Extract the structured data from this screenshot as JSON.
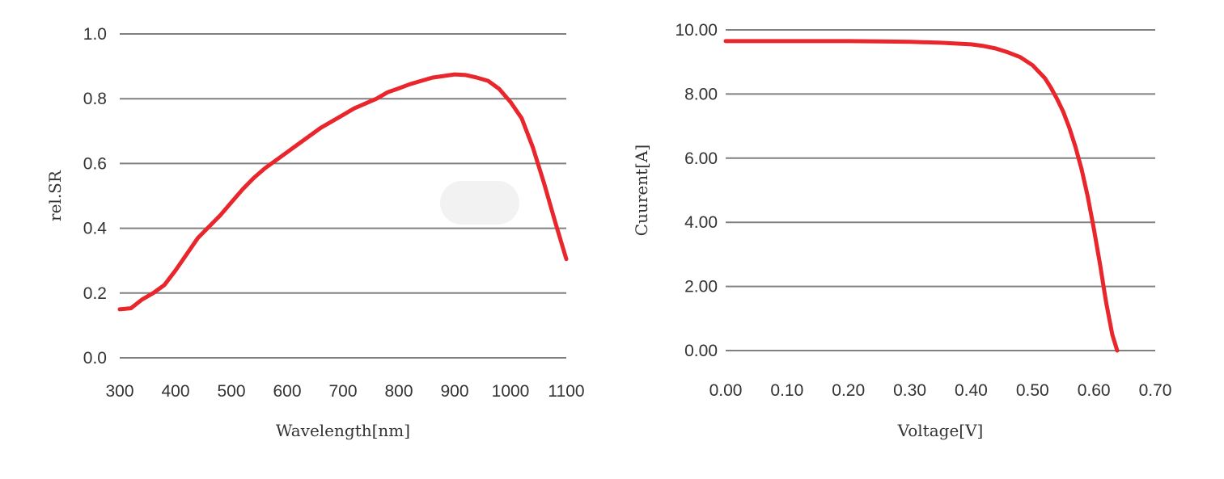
{
  "colors": {
    "curve": "#e8262b",
    "grid": "#808080",
    "text": "#333333"
  },
  "chart_data": [
    {
      "type": "line",
      "title": "",
      "xlabel": "Wavelength[nm]",
      "ylabel": "rel.SR",
      "xlim": [
        300,
        1100
      ],
      "ylim": [
        0,
        1
      ],
      "x_ticks": [
        300,
        400,
        500,
        600,
        700,
        800,
        900,
        1000,
        1100
      ],
      "x_tick_labels": [
        "300",
        "400",
        "500",
        "600",
        "700",
        "800",
        "900",
        "1000",
        "1100"
      ],
      "y_ticks": [
        0,
        0.2,
        0.4,
        0.6,
        0.8,
        1.0
      ],
      "y_tick_labels": [
        "0.0",
        "0.2",
        "0.4",
        "0.6",
        "0.8",
        "1.0"
      ],
      "grid": true,
      "legend": "none",
      "series": [
        {
          "x": [
            300,
            320,
            340,
            360,
            380,
            400,
            420,
            440,
            460,
            480,
            500,
            520,
            540,
            560,
            580,
            600,
            620,
            640,
            660,
            680,
            700,
            720,
            740,
            760,
            780,
            800,
            820,
            840,
            860,
            880,
            900,
            920,
            940,
            960,
            980,
            1000,
            1020,
            1040,
            1060,
            1080,
            1100
          ],
          "y": [
            0.15,
            0.153,
            0.18,
            0.2,
            0.225,
            0.27,
            0.32,
            0.37,
            0.405,
            0.44,
            0.48,
            0.52,
            0.555,
            0.585,
            0.61,
            0.635,
            0.66,
            0.685,
            0.71,
            0.73,
            0.75,
            0.77,
            0.785,
            0.8,
            0.82,
            0.832,
            0.845,
            0.855,
            0.865,
            0.87,
            0.875,
            0.873,
            0.865,
            0.855,
            0.83,
            0.79,
            0.74,
            0.65,
            0.54,
            0.42,
            0.305
          ]
        }
      ]
    },
    {
      "type": "line",
      "title": "",
      "xlabel": "Voltage[V]",
      "ylabel": "Cuurent[A]",
      "xlim": [
        0,
        0.7
      ],
      "ylim": [
        0,
        10
      ],
      "x_ticks": [
        0,
        0.1,
        0.2,
        0.3,
        0.4,
        0.5,
        0.6,
        0.7
      ],
      "x_tick_labels": [
        "0.00",
        "0.10",
        "0.20",
        "0.30",
        "0.40",
        "0.50",
        "0.60",
        "0.70"
      ],
      "y_ticks": [
        0,
        2,
        4,
        6,
        8,
        10
      ],
      "y_tick_labels": [
        "0.00",
        "2.00",
        "4.00",
        "6.00",
        "8.00",
        "10.00"
      ],
      "grid": true,
      "legend": "none",
      "series": [
        {
          "x": [
            0,
            0.05,
            0.1,
            0.15,
            0.2,
            0.25,
            0.3,
            0.35,
            0.4,
            0.42,
            0.44,
            0.46,
            0.48,
            0.5,
            0.52,
            0.53,
            0.54,
            0.55,
            0.56,
            0.57,
            0.58,
            0.59,
            0.6,
            0.61,
            0.62,
            0.63,
            0.638
          ],
          "y": [
            9.65,
            9.65,
            9.65,
            9.65,
            9.65,
            9.64,
            9.63,
            9.6,
            9.55,
            9.5,
            9.42,
            9.3,
            9.15,
            8.9,
            8.5,
            8.2,
            7.85,
            7.45,
            6.95,
            6.35,
            5.65,
            4.8,
            3.8,
            2.7,
            1.5,
            0.5,
            0.0
          ]
        }
      ]
    }
  ]
}
